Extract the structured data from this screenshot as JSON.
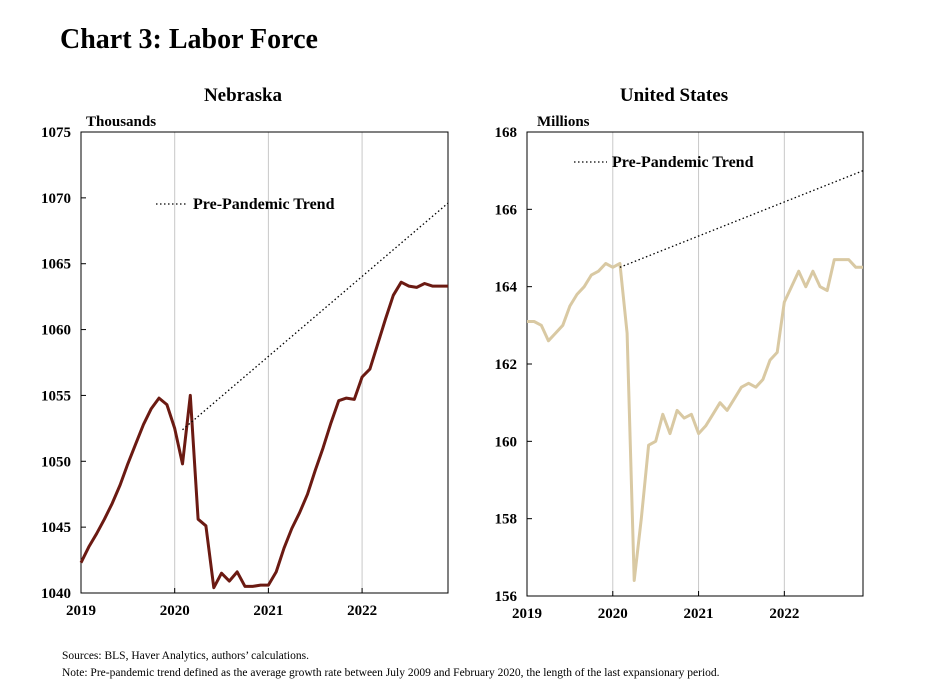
{
  "title": "Chart 3: Labor Force",
  "footnotes": {
    "sources": "Sources: BLS,  Haver Analytics, authors’ calculations.",
    "note": "Note: Pre-pandemic  trend defined as the average growth rate between July 2009  and February 2020,  the length of the last expansionary period."
  },
  "colors": {
    "nebraska_series": "#6b1a12",
    "us_series": "#d9c9a3",
    "trend": "#000000",
    "gridline": "#c8c8c8"
  },
  "chart_data": [
    {
      "type": "line",
      "title": "Nebraska",
      "ylabel": "Thousands",
      "xlim": [
        2019,
        2022.917
      ],
      "ylim": [
        1040,
        1075
      ],
      "yticks": [
        "1040",
        "1045",
        "1050",
        "1055",
        "1060",
        "1065",
        "1070",
        "1075"
      ],
      "xticks": [
        "2019",
        "2020",
        "2021",
        "2022"
      ],
      "grid": "vertical at year starts",
      "legend": {
        "label": "Pre-Pandemic Trend",
        "placement": "upper-middle"
      },
      "series": [
        {
          "name": "Nebraska",
          "x": [
            2019.0,
            2019.083,
            2019.167,
            2019.25,
            2019.333,
            2019.417,
            2019.5,
            2019.583,
            2019.667,
            2019.75,
            2019.833,
            2019.917,
            2020.0,
            2020.083,
            2020.167,
            2020.25,
            2020.333,
            2020.417,
            2020.5,
            2020.583,
            2020.667,
            2020.75,
            2020.833,
            2020.917,
            2021.0,
            2021.083,
            2021.167,
            2021.25,
            2021.333,
            2021.417,
            2021.5,
            2021.583,
            2021.667,
            2021.75,
            2021.833,
            2021.917,
            2022.0,
            2022.083,
            2022.167,
            2022.25,
            2022.333,
            2022.417,
            2022.5,
            2022.583,
            2022.667,
            2022.75,
            2022.833,
            2022.917
          ],
          "values": [
            1042.3,
            1043.5,
            1044.5,
            1045.6,
            1046.8,
            1048.2,
            1049.8,
            1051.3,
            1052.8,
            1054.0,
            1054.8,
            1054.3,
            1052.5,
            1049.8,
            1055.0,
            1045.6,
            1045.1,
            1040.4,
            1041.5,
            1040.9,
            1041.6,
            1040.5,
            1040.5,
            1040.6,
            1040.6,
            1041.6,
            1043.4,
            1044.9,
            1046.1,
            1047.5,
            1049.3,
            1051.0,
            1052.9,
            1054.6,
            1054.8,
            1054.7,
            1056.4,
            1057.0,
            1058.9,
            1060.8,
            1062.6,
            1063.6,
            1063.3,
            1063.2,
            1063.5,
            1063.3,
            1063.3,
            1063.3
          ]
        },
        {
          "name": "Pre-Pandemic Trend",
          "style": "dotted",
          "x": [
            2020.083,
            2022.917
          ],
          "values": [
            1052.4,
            1069.6
          ]
        }
      ]
    },
    {
      "type": "line",
      "title": "United States",
      "ylabel": "Millions",
      "xlim": [
        2019,
        2022.917
      ],
      "ylim": [
        156,
        168
      ],
      "yticks": [
        "156",
        "158",
        "160",
        "162",
        "164",
        "166",
        "168"
      ],
      "xticks": [
        "2019",
        "2020",
        "2021",
        "2022"
      ],
      "grid": "vertical at year starts",
      "legend": {
        "label": "Pre-Pandemic Trend",
        "placement": "top-center"
      },
      "series": [
        {
          "name": "United States",
          "x": [
            2019.0,
            2019.083,
            2019.167,
            2019.25,
            2019.333,
            2019.417,
            2019.5,
            2019.583,
            2019.667,
            2019.75,
            2019.833,
            2019.917,
            2020.0,
            2020.083,
            2020.167,
            2020.25,
            2020.333,
            2020.417,
            2020.5,
            2020.583,
            2020.667,
            2020.75,
            2020.833,
            2020.917,
            2021.0,
            2021.083,
            2021.167,
            2021.25,
            2021.333,
            2021.417,
            2021.5,
            2021.583,
            2021.667,
            2021.75,
            2021.833,
            2021.917,
            2022.0,
            2022.083,
            2022.167,
            2022.25,
            2022.333,
            2022.417,
            2022.5,
            2022.583,
            2022.667,
            2022.75,
            2022.833,
            2022.917
          ],
          "values": [
            163.1,
            163.1,
            163.0,
            162.6,
            162.8,
            163.0,
            163.5,
            163.8,
            164.0,
            164.3,
            164.4,
            164.6,
            164.5,
            164.6,
            162.8,
            156.4,
            158.0,
            159.9,
            160.0,
            160.7,
            160.2,
            160.8,
            160.6,
            160.7,
            160.2,
            160.4,
            160.7,
            161.0,
            160.8,
            161.1,
            161.4,
            161.5,
            161.4,
            161.6,
            162.1,
            162.3,
            163.6,
            164.0,
            164.4,
            164.0,
            164.4,
            164.0,
            163.9,
            164.7,
            164.7,
            164.7,
            164.5,
            164.5
          ]
        },
        {
          "name": "Pre-Pandemic Trend",
          "style": "dotted",
          "x": [
            2020.083,
            2022.917
          ],
          "values": [
            164.5,
            167.0
          ]
        }
      ]
    }
  ]
}
